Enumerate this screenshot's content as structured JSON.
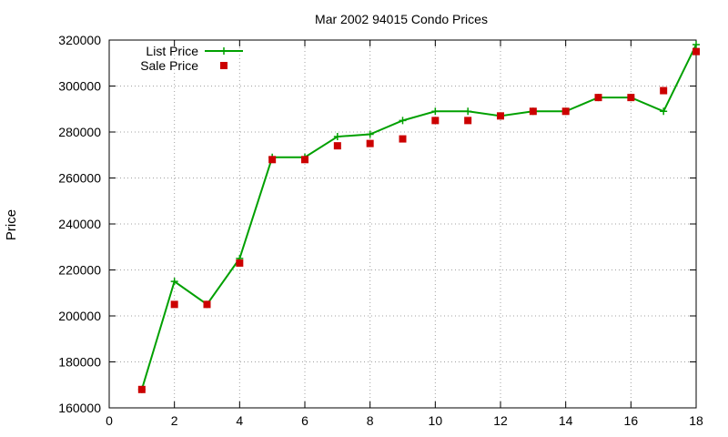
{
  "chart_data": {
    "type": "line",
    "title": "Mar 2002 94015 Condo Prices",
    "xlabel": "",
    "ylabel": "Price",
    "xlim": [
      0,
      18
    ],
    "ylim": [
      160000,
      320000
    ],
    "xticks": [
      0,
      2,
      4,
      6,
      8,
      10,
      12,
      14,
      16,
      18
    ],
    "yticks": [
      160000,
      180000,
      200000,
      220000,
      240000,
      260000,
      280000,
      300000,
      320000
    ],
    "grid": true,
    "legend_position": "top-left",
    "colors": {
      "list": "#00a000",
      "sale": "#cc0000"
    },
    "series": [
      {
        "name": "List Price",
        "style": "line-with-plus-markers",
        "x": [
          1,
          2,
          3,
          4,
          5,
          6,
          7,
          8,
          9,
          10,
          11,
          12,
          13,
          14,
          15,
          16,
          17,
          18
        ],
        "y": [
          168000,
          215000,
          205000,
          225000,
          269000,
          269000,
          278000,
          279000,
          285000,
          289000,
          289000,
          287000,
          289000,
          289000,
          295000,
          295000,
          289000,
          318000
        ]
      },
      {
        "name": "Sale Price",
        "style": "square-markers",
        "x": [
          1,
          2,
          3,
          4,
          5,
          6,
          7,
          8,
          9,
          10,
          11,
          12,
          13,
          14,
          15,
          16,
          17,
          18
        ],
        "y": [
          168000,
          205000,
          205000,
          223000,
          268000,
          268000,
          274000,
          275000,
          277000,
          285000,
          285000,
          287000,
          289000,
          289000,
          295000,
          295000,
          298000,
          315000
        ]
      }
    ]
  }
}
